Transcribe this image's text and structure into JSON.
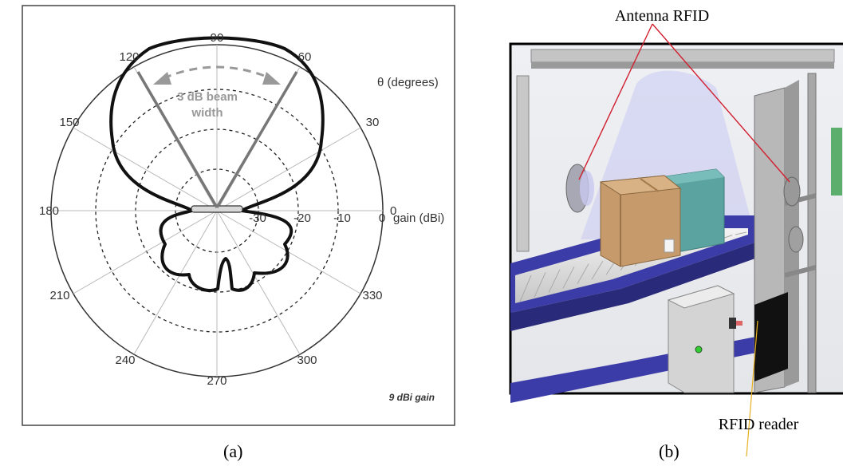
{
  "panel_a": {
    "caption": "(a)",
    "angle_labels": [
      "0",
      "30",
      "60",
      "90",
      "120",
      "150",
      "180",
      "210",
      "240",
      "270",
      "300",
      "330"
    ],
    "axis_title": "θ (degrees)",
    "ring_labels": [
      "-30",
      "-20",
      "-10",
      "0"
    ],
    "gain_axis_label": "gain (dBi)",
    "beam_label_line1": "3 dB beam",
    "beam_label_line2": "width",
    "gain_note": "9 dBi gain"
  },
  "panel_b": {
    "caption": "(b)",
    "antenna_label": "Antenna RFID",
    "reader_label": "RFID reader",
    "colors": {
      "leader_antenna": "#d22030",
      "leader_reader": "#e8b020",
      "conveyor": "#3c3ca8"
    }
  }
}
